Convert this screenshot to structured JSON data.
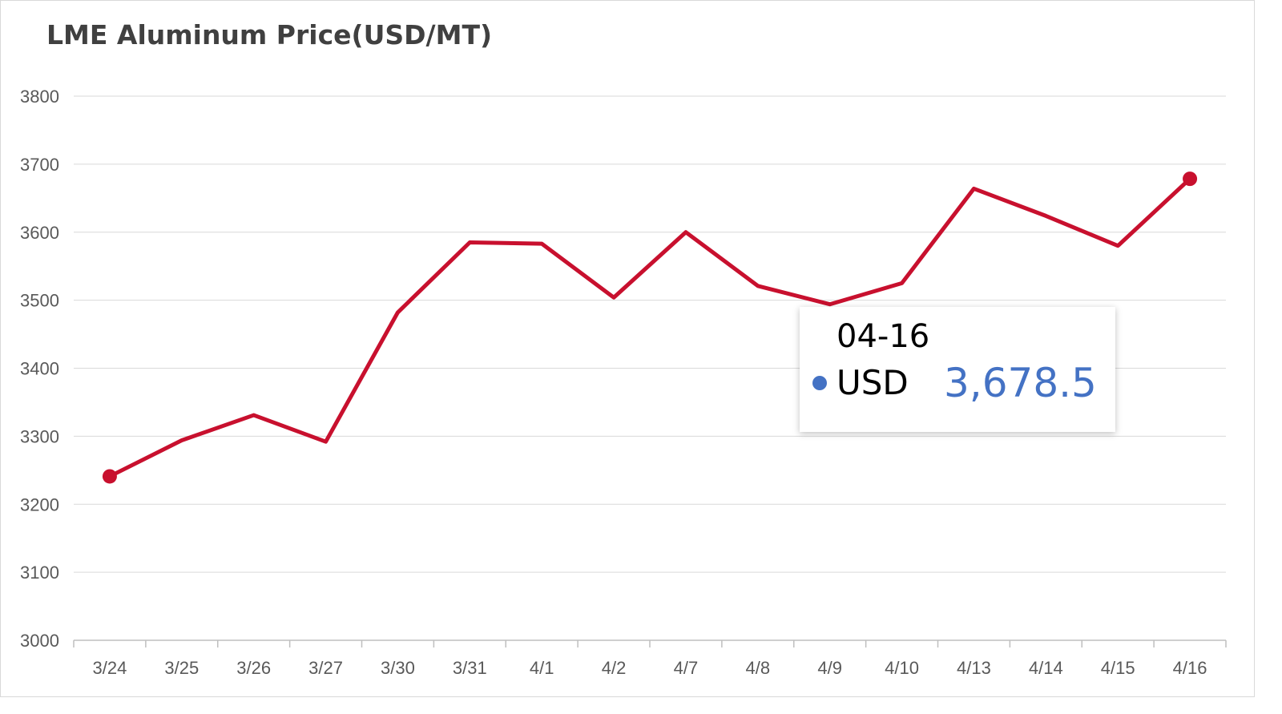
{
  "chart_data": {
    "type": "line",
    "title": "LME Aluminum Price(USD/MT)",
    "categories": [
      "3/24",
      "3/25",
      "3/26",
      "3/27",
      "3/30",
      "3/31",
      "4/1",
      "4/2",
      "4/7",
      "4/8",
      "4/9",
      "4/10",
      "4/13",
      "4/14",
      "4/15",
      "4/16"
    ],
    "series": [
      {
        "name": "USD",
        "values": [
          3241,
          3294,
          3331,
          3292,
          3482,
          3585,
          3583,
          3504,
          3600,
          3521,
          3494,
          3525,
          3664,
          3624,
          3580,
          3678.5
        ]
      }
    ],
    "ylim": [
      3000,
      3800
    ],
    "yticks": [
      3000,
      3100,
      3200,
      3300,
      3400,
      3500,
      3600,
      3700,
      3800
    ],
    "grid": true,
    "line_color": "#c8102e",
    "tooltip": {
      "date": "04-16",
      "label": "USD",
      "value": "3,678.5",
      "dot_color": "#4472c4",
      "value_color": "#4472c4"
    }
  }
}
